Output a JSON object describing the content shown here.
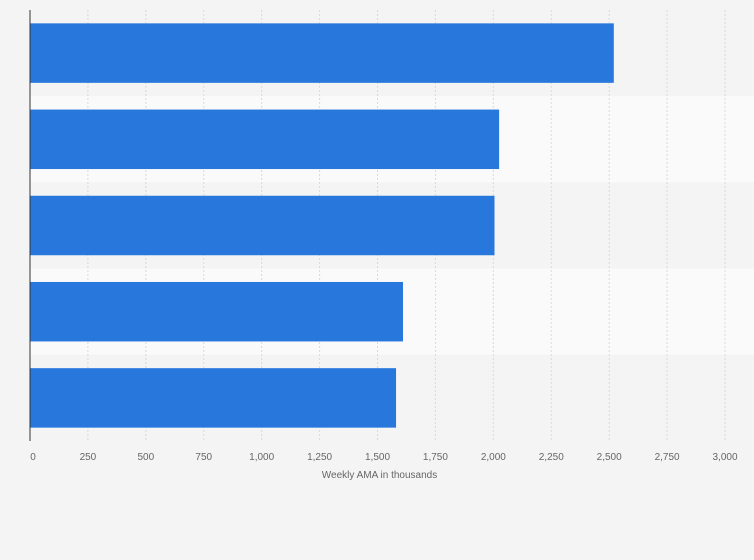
{
  "chart_data": {
    "type": "bar",
    "orientation": "horizontal",
    "categories": [
      "",
      "",
      "",
      "",
      ""
    ],
    "values": [
      2520,
      2025,
      2005,
      1610,
      1580
    ],
    "xlabel": "Weekly AMA in thousands",
    "ylabel": "",
    "xlim": [
      0,
      3000
    ],
    "xticks": [
      "0",
      "250",
      "500",
      "750",
      "1,000",
      "1,250",
      "1,500",
      "1,750",
      "2,000",
      "2,250",
      "2,500",
      "2,750",
      "3,000"
    ],
    "grid": true,
    "legend": "none",
    "colors": {
      "bar": "#2777dd",
      "band_dark": "#f4f4f4",
      "band_light": "#fafafa",
      "grid": "#d9d9d9",
      "axis": "#333333",
      "text": "#666666"
    }
  }
}
